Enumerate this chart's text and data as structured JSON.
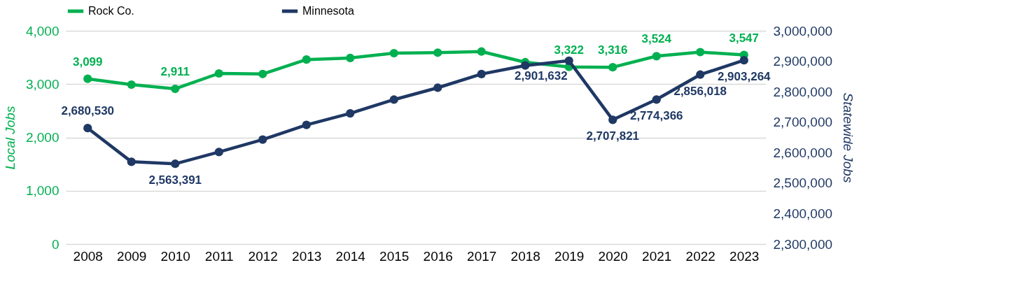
{
  "chart_data": {
    "type": "line",
    "categories": [
      "2008",
      "2009",
      "2010",
      "2011",
      "2012",
      "2013",
      "2014",
      "2015",
      "2016",
      "2017",
      "2018",
      "2019",
      "2020",
      "2021",
      "2022",
      "2023"
    ],
    "ylabel": "Local Jobs",
    "y2label": "Statewide Jobs",
    "ylim": [
      0,
      4000
    ],
    "yticks": [
      0,
      {
        "value": 1000,
        "label": "1,000"
      },
      {
        "value": 2000,
        "label": "2,000"
      },
      {
        "value": 3000,
        "label": "3,000"
      },
      {
        "value": 4000,
        "label": "4,000"
      }
    ],
    "y2lim": [
      2300000,
      3000000
    ],
    "y2ticks": [
      {
        "value": 2300000,
        "label": "2,300,000"
      },
      {
        "value": 2400000,
        "label": "2,400,000"
      },
      {
        "value": 2500000,
        "label": "2,500,000"
      },
      {
        "value": 2600000,
        "label": "2,600,000"
      },
      {
        "value": 2700000,
        "label": "2,700,000"
      },
      {
        "value": 2800000,
        "label": "2,800,000"
      },
      {
        "value": 2900000,
        "label": "2,900,000"
      },
      {
        "value": 3000000,
        "label": "3,000,000"
      }
    ],
    "grid": "y",
    "legend": "top",
    "marker": "circle",
    "line_style": "solid",
    "series": [
      {
        "name": "Rock Co.",
        "color": "#00b050",
        "values": [
          3099,
          2990,
          2911,
          3200,
          3190,
          3460,
          3490,
          3580,
          3590,
          3610,
          3410,
          3322,
          3316,
          3524,
          3600,
          3547
        ],
        "value_labels": [
          "3,099",
          null,
          "2,911",
          null,
          null,
          null,
          null,
          null,
          null,
          null,
          null,
          "3,322",
          "3,316",
          "3,524",
          null,
          "3,547"
        ]
      },
      {
        "name": "Minnesota",
        "color": "#1f3864",
        "axis": "y2",
        "values": [
          2680530,
          2570000,
          2563391,
          2602000,
          2643000,
          2691000,
          2729000,
          2774000,
          2813000,
          2858000,
          2886000,
          2901632,
          2707821,
          2774366,
          2856018,
          2903264
        ],
        "value_labels": [
          "2,680,530",
          null,
          "2,563,391",
          null,
          null,
          null,
          null,
          null,
          null,
          null,
          null,
          "2,901,632",
          "2,707,821",
          "2,774,366",
          "2,856,018",
          "2,903,264"
        ]
      }
    ]
  }
}
